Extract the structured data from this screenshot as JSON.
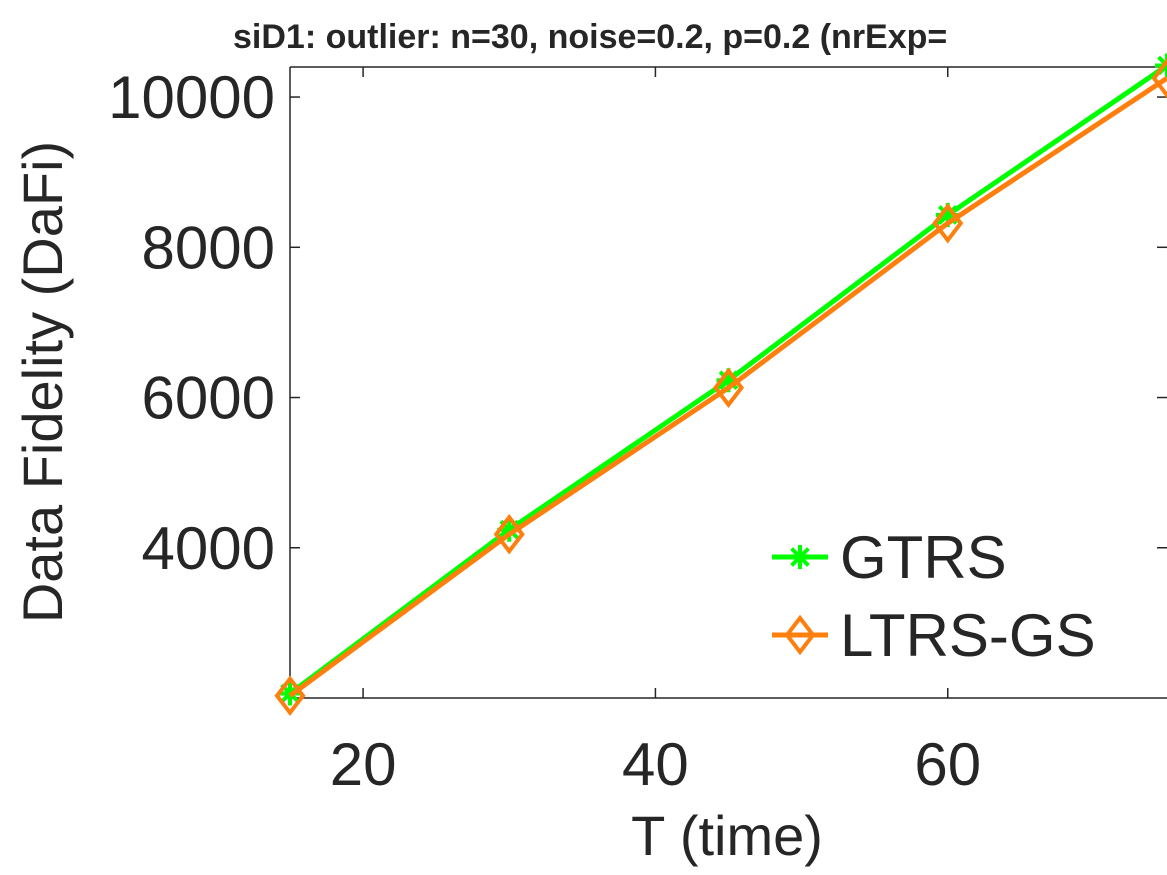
{
  "chart_data": {
    "type": "line",
    "title": "siD1: outlier: n=30, noise=0.2, p=0.2 (nrExp=",
    "xlabel": "T (time)",
    "ylabel": "Data Fidelity (DaFi)",
    "x": [
      15,
      30,
      45,
      60,
      75
    ],
    "xlim": [
      15,
      75
    ],
    "ylim": [
      2000,
      10400
    ],
    "xticks": [
      20,
      40,
      60
    ],
    "yticks": [
      4000,
      6000,
      8000,
      10000
    ],
    "xtick_labels": [
      "20",
      "40",
      "60"
    ],
    "ytick_labels": [
      "4000",
      "6000",
      "8000",
      "10000"
    ],
    "grid": false,
    "legend_position": "bottom-right",
    "series": [
      {
        "name": "GTRS",
        "values": [
          2060,
          4240,
          6230,
          8430,
          10420
        ],
        "color": "#00ff00",
        "marker": "asterisk"
      },
      {
        "name": "LTRS-GS",
        "values": [
          2030,
          4180,
          6130,
          8320,
          10250
        ],
        "color": "#ff7f0e",
        "marker": "diamond"
      }
    ]
  }
}
